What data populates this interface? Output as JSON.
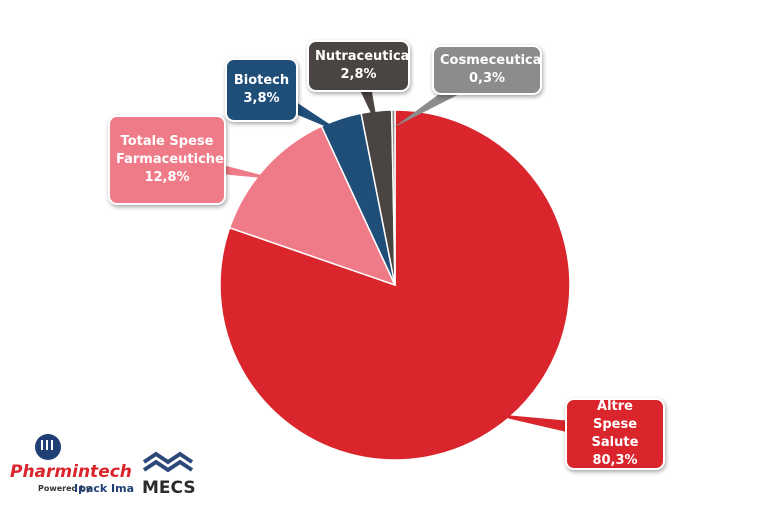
{
  "chart_data": {
    "type": "pie",
    "categories": [
      "Altre Spese Salute",
      "Totale Spese Farmaceutiche",
      "Biotech",
      "Nutraceutica",
      "Cosmeceutica"
    ],
    "values": [
      80.3,
      12.8,
      3.8,
      2.8,
      0.3
    ],
    "value_labels": [
      "80,3%",
      "12,8%",
      "3,8%",
      "2,8%",
      "0,3%"
    ],
    "colors": [
      "#d9252b",
      "#f07b88",
      "#1f4e79",
      "#4a4443",
      "#8c8c8c"
    ]
  },
  "logos": {
    "pharmintech": "Pharmintech",
    "powered": "Powered by",
    "ipack": "Ipack Ima",
    "mecs": "MECS"
  }
}
